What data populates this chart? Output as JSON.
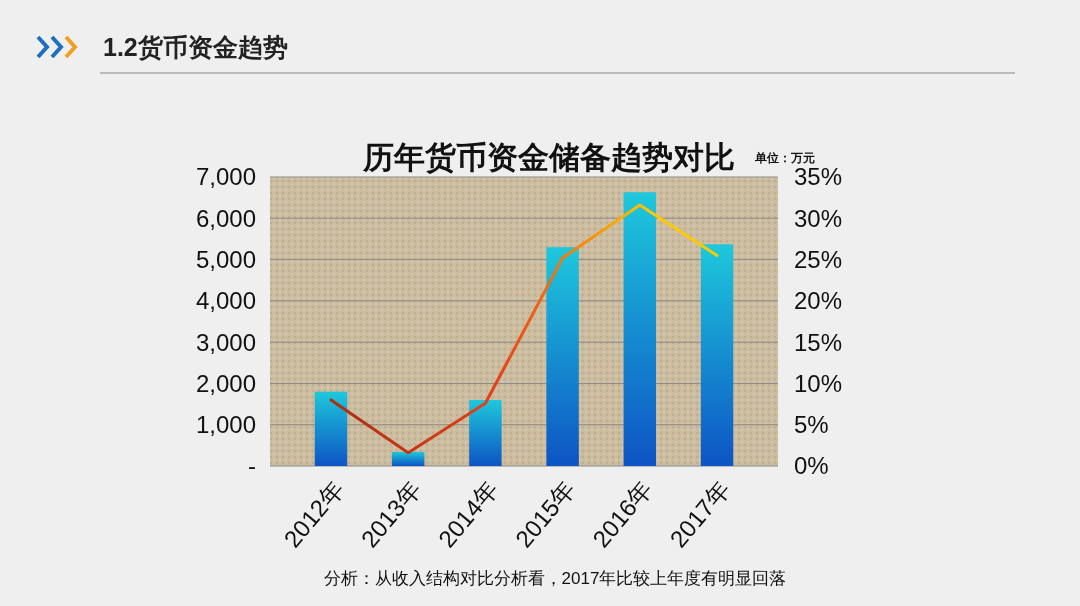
{
  "chart_data": {
    "type": "bar",
    "title": "历年货币资金储备趋势对比",
    "subtitle": "1.2货币资金趋势",
    "annotations": [
      "单位：万元",
      "分析：从收入结构对比分析看，2017年比较上年度有明显回落"
    ],
    "categories": [
      "2012年",
      "2013年",
      "2014年",
      "2015年",
      "2016年",
      "2017年"
    ],
    "series": [
      {
        "color": "#1ec8dc",
        "values": [
          1800,
          340,
          1600,
          5300,
          6630,
          5370
        ]
      },
      {
        "type": "line",
        "axis": "y2",
        "color": "#e8401a",
        "values": [
          8.0,
          1.6,
          7.6,
          25.2,
          31.6,
          25.5
        ]
      }
    ],
    "ylim": [
      0,
      7000
    ],
    "yticks": [
      {
        "value": 0,
        "label": "-"
      },
      {
        "value": 1000,
        "label": "1,000"
      },
      {
        "value": 2000,
        "label": "2,000"
      },
      {
        "value": 3000,
        "label": "3,000"
      },
      {
        "value": 4000,
        "label": "4,000"
      },
      {
        "value": 5000,
        "label": "5,000"
      },
      {
        "value": 6000,
        "label": "6,000"
      },
      {
        "value": 7000,
        "label": "7,000"
      }
    ],
    "y2lim": [
      0,
      35
    ],
    "y2ticks": [
      {
        "value": 0,
        "label": "0%"
      },
      {
        "value": 5,
        "label": "5%"
      },
      {
        "value": 10,
        "label": "10%"
      },
      {
        "value": 15,
        "label": "15%"
      },
      {
        "value": 20,
        "label": "20%"
      },
      {
        "value": 25,
        "label": "25%"
      },
      {
        "value": 30,
        "label": "30%"
      },
      {
        "value": 35,
        "label": "35%"
      }
    ],
    "grid": "y",
    "marker": "none",
    "line_style": "solid"
  }
}
